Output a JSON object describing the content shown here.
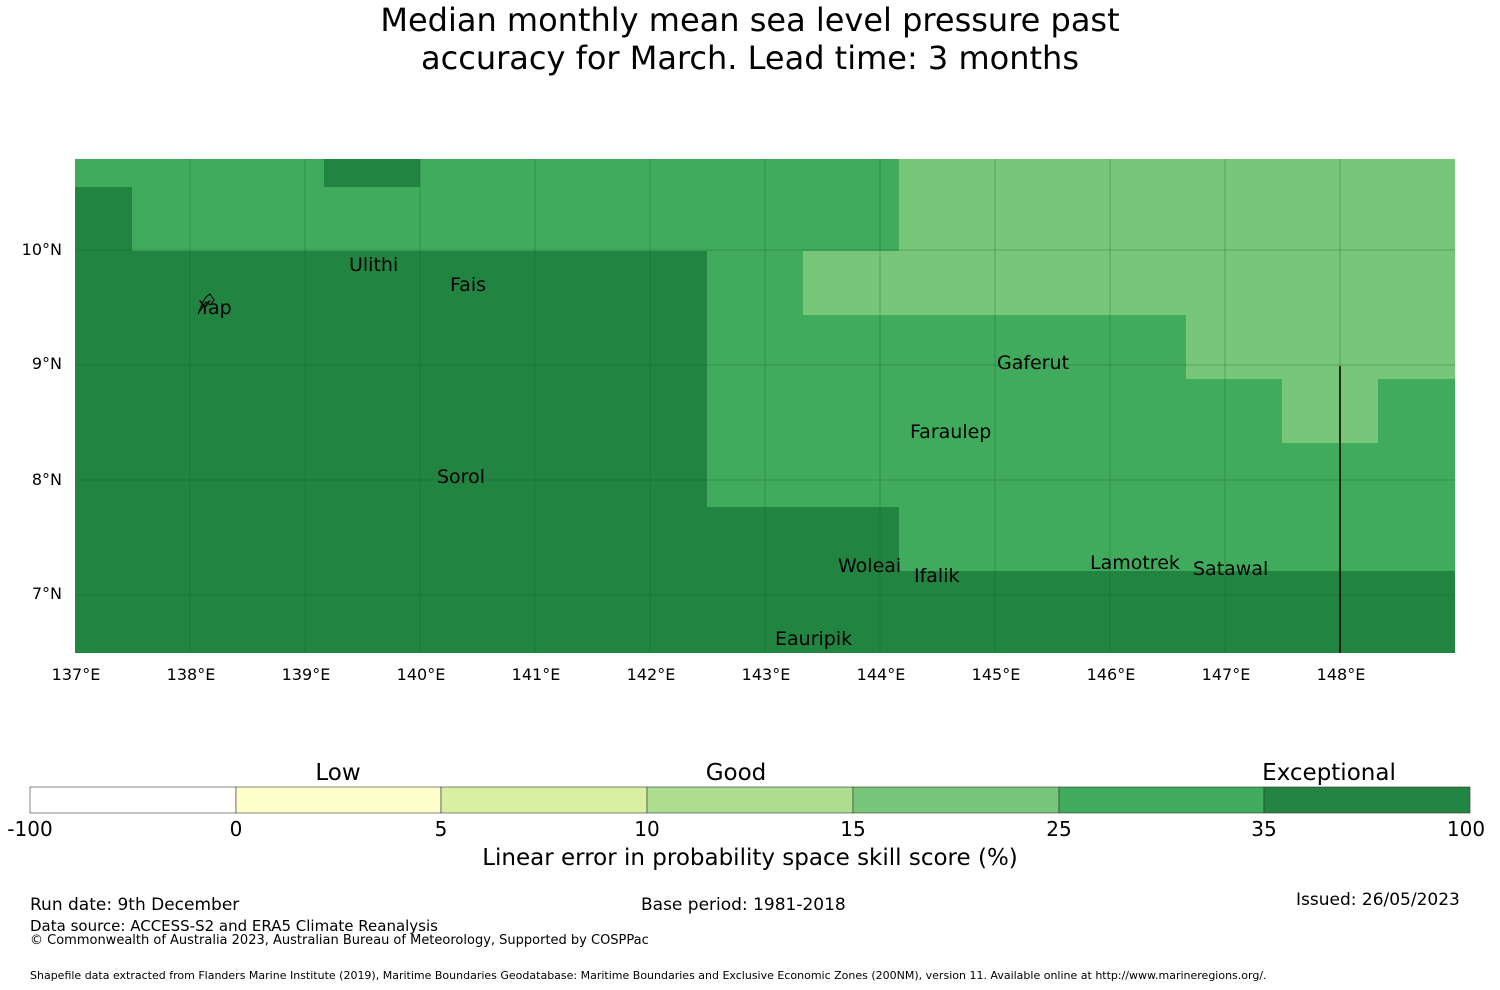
{
  "title": {
    "line1": "Median monthly mean sea level pressure past",
    "line2": "accuracy for March. Lead time: 3 months"
  },
  "map": {
    "lon_ticks": [
      "137°E",
      "138°E",
      "139°E",
      "140°E",
      "141°E",
      "142°E",
      "143°E",
      "144°E",
      "145°E",
      "146°E",
      "147°E",
      "148°E"
    ],
    "lat_ticks": [
      "10°N",
      "9°N",
      "8°N",
      "7°N"
    ],
    "places": [
      "Ulithi",
      "Fais",
      "Yap",
      "Gaferut",
      "Faraulep",
      "Sorol",
      "Woleai",
      "Ifalik",
      "Lamotrek",
      "Satawal",
      "Eauripik"
    ],
    "colors": {
      "exceptional_dark": "#228441",
      "good_high": "#41ab5d",
      "good_mid": "#78c679"
    }
  },
  "legend": {
    "categories": [
      "Low",
      "Good",
      "Exceptional"
    ],
    "ticks": [
      "-100",
      "0",
      "5",
      "10",
      "15",
      "25",
      "35",
      "100"
    ],
    "colors": [
      "#ffffff",
      "#ffffcc",
      "#d9f0a3",
      "#addd8e",
      "#78c679",
      "#41ab5d",
      "#238443"
    ],
    "axis_label": "Linear error in probability space skill score (%)"
  },
  "footer": {
    "run_date": "Run date: 9th December",
    "base_period": "Base period: 1981-2018",
    "issued": "Issued: 26/05/2023",
    "data_source": "Data source: ACCESS-S2 and ERA5 Climate Reanalysis",
    "copyright": "© Commonwealth of Australia 2023, Australian Bureau of Meteorology, Supported by COSPPac",
    "shapefile": "Shapefile data extracted from Flanders Marine Institute (2019), Maritime Boundaries Geodatabase: Maritime Boundaries and Exclusive Economic Zones (200NM), version 11. Available online at http://www.marineregions.org/."
  }
}
